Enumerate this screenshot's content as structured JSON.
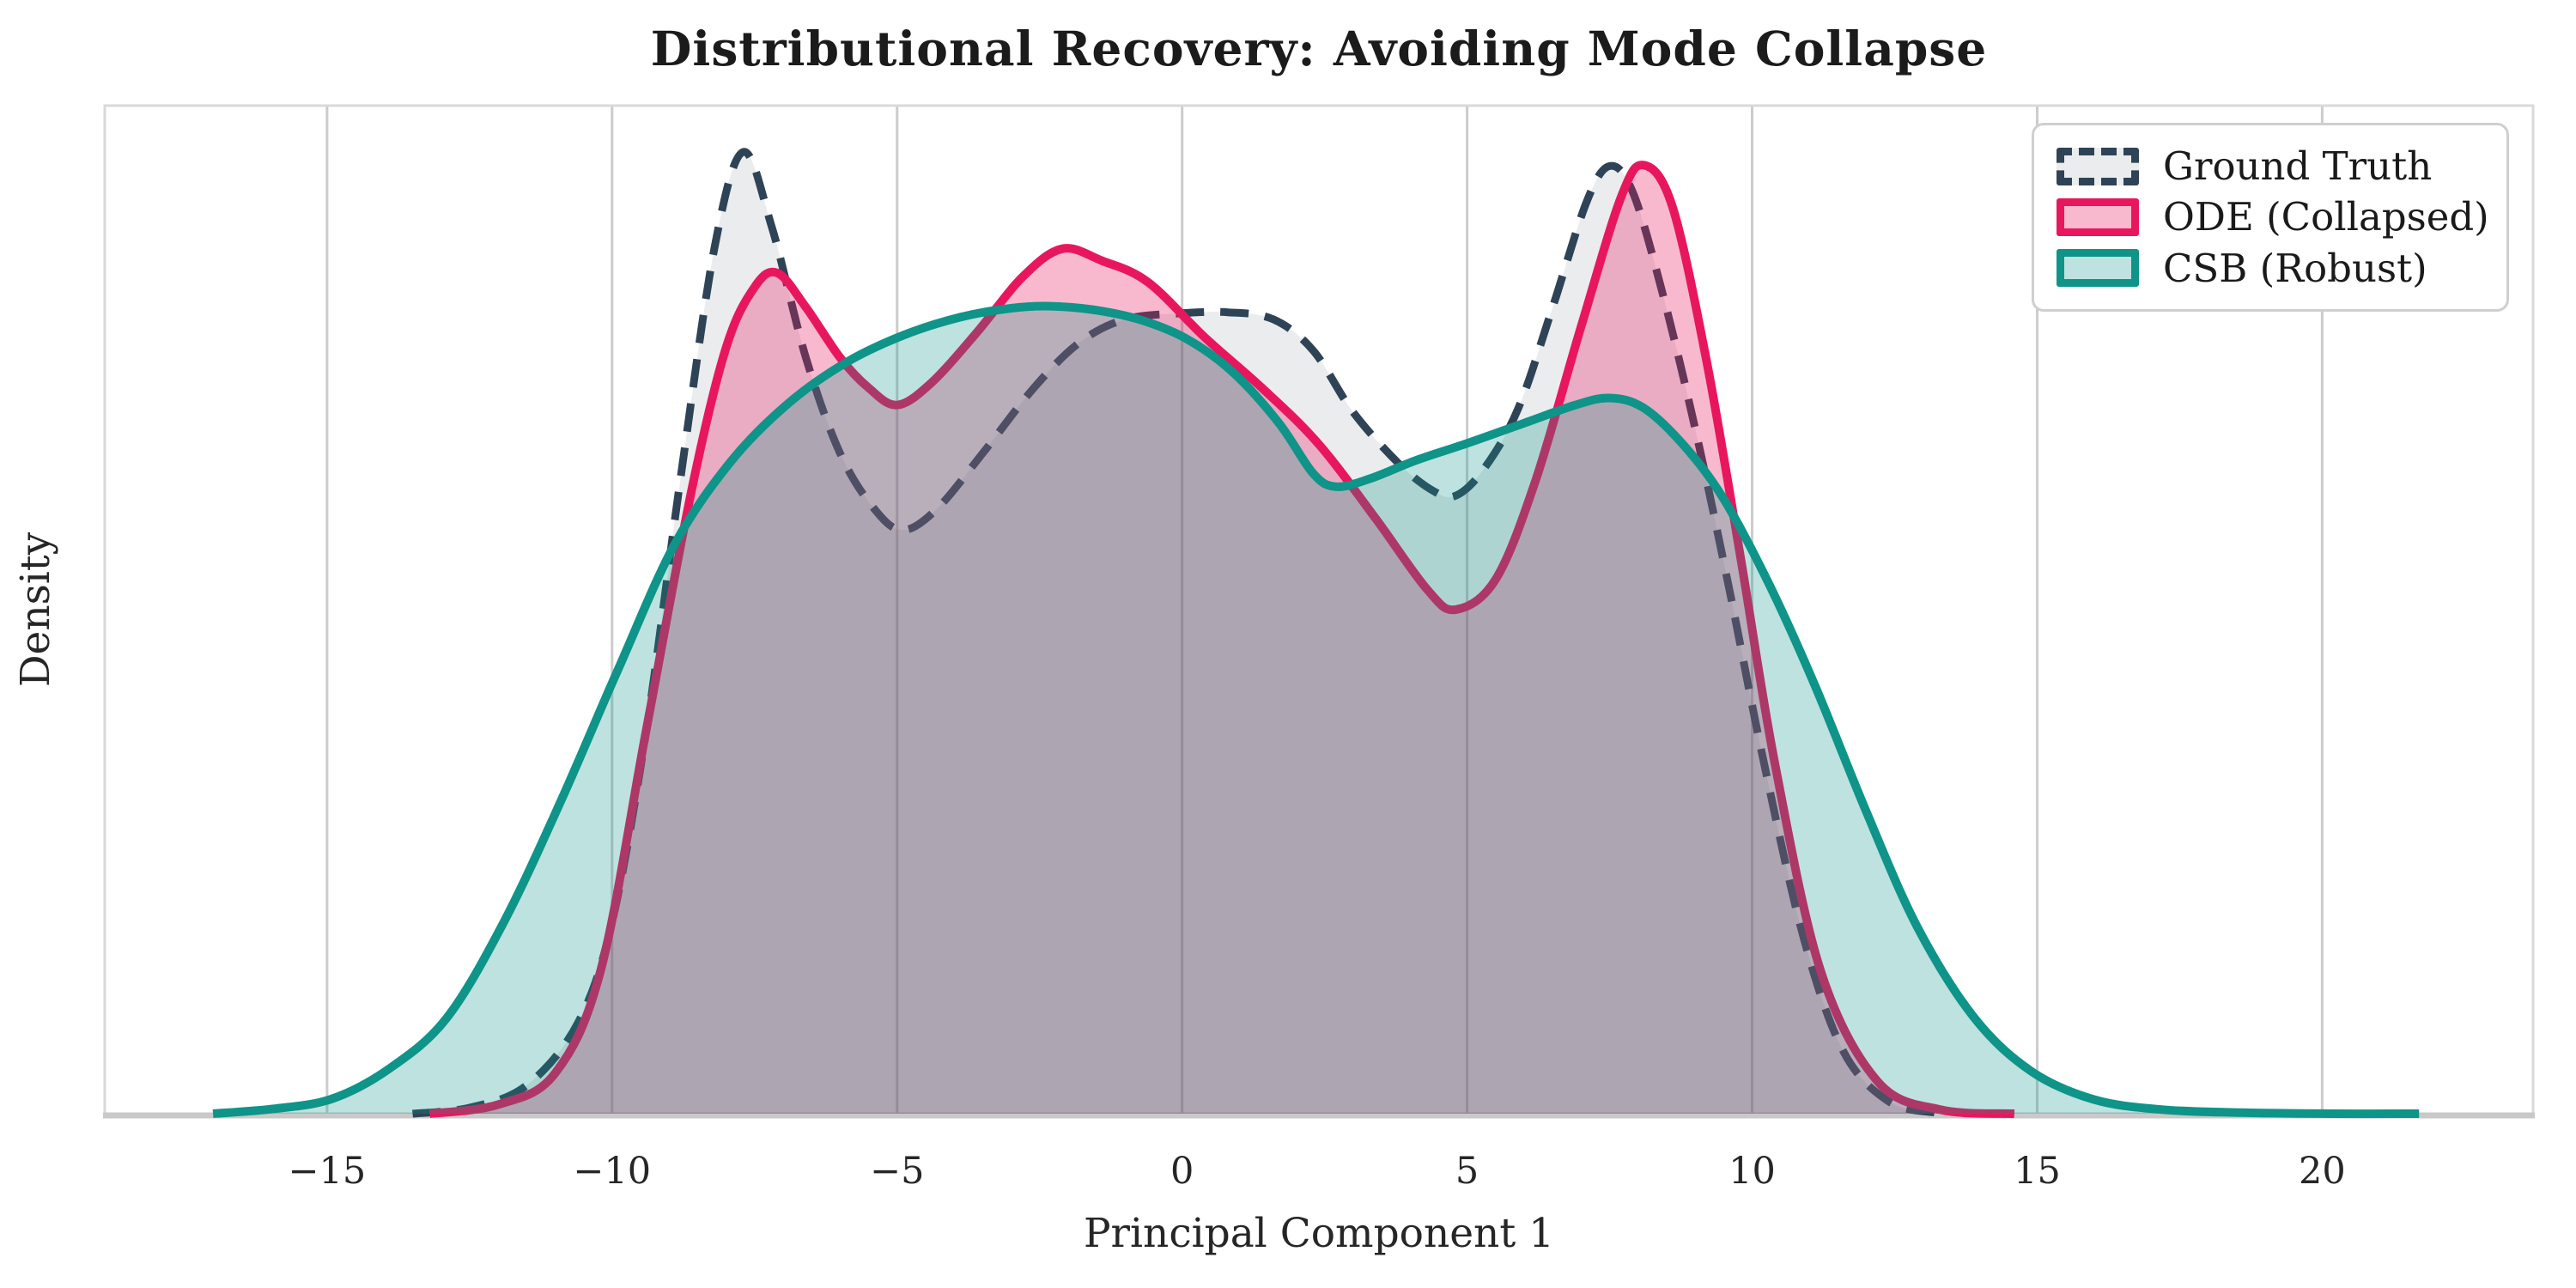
{
  "title": "Distributional Recovery: Avoiding Mode Collapse",
  "chart_data": {
    "type": "area",
    "title": "Distributional Recovery: Avoiding Mode Collapse",
    "xlabel": "Principal Component 1",
    "ylabel": "Density",
    "xlim": [
      -18.9,
      23.7
    ],
    "ylim": [
      0,
      1.0
    ],
    "grid": "vertical-only",
    "grid_color": "#cccccc",
    "frame_color": "#d9d9d9",
    "legend_position": "upper right",
    "x_tick_values": [
      -15,
      -10,
      -5,
      0,
      5,
      10,
      15,
      20
    ],
    "x_tick_labels": [
      "−15",
      "−10",
      "−5",
      "0",
      "5",
      "10",
      "15",
      "20"
    ],
    "y_tick_labels": [],
    "series": [
      {
        "name": "Ground Truth",
        "style": "dashed",
        "line_color": "#2E4356",
        "fill_color": "rgba(46,67,86,0.10)",
        "points": [
          [
            -13.5,
            0.0
          ],
          [
            -12.5,
            0.006
          ],
          [
            -11.5,
            0.028
          ],
          [
            -10.6,
            0.09
          ],
          [
            -10.0,
            0.19
          ],
          [
            -9.4,
            0.38
          ],
          [
            -8.8,
            0.63
          ],
          [
            -8.2,
            0.86
          ],
          [
            -7.7,
            0.954
          ],
          [
            -7.2,
            0.88
          ],
          [
            -6.6,
            0.75
          ],
          [
            -6.0,
            0.655
          ],
          [
            -5.4,
            0.6
          ],
          [
            -4.9,
            0.579
          ],
          [
            -4.3,
            0.6
          ],
          [
            -3.5,
            0.655
          ],
          [
            -2.6,
            0.72
          ],
          [
            -1.8,
            0.765
          ],
          [
            -1.0,
            0.788
          ],
          [
            0.0,
            0.794
          ],
          [
            0.8,
            0.795
          ],
          [
            1.6,
            0.788
          ],
          [
            2.3,
            0.757
          ],
          [
            3.0,
            0.696
          ],
          [
            3.8,
            0.645
          ],
          [
            4.4,
            0.618
          ],
          [
            4.8,
            0.613
          ],
          [
            5.3,
            0.64
          ],
          [
            5.9,
            0.7
          ],
          [
            6.5,
            0.8
          ],
          [
            7.1,
            0.905
          ],
          [
            7.5,
            0.94
          ],
          [
            7.9,
            0.915
          ],
          [
            8.4,
            0.82
          ],
          [
            9.0,
            0.68
          ],
          [
            9.6,
            0.52
          ],
          [
            10.2,
            0.35
          ],
          [
            10.9,
            0.175
          ],
          [
            11.6,
            0.062
          ],
          [
            12.4,
            0.012
          ],
          [
            13.2,
            0.001
          ]
        ]
      },
      {
        "name": "ODE (Collapsed)",
        "style": "solid",
        "line_color": "#E8175D",
        "fill_color": "rgba(232,23,93,0.30)",
        "points": [
          [
            -13.2,
            0.0
          ],
          [
            -12.0,
            0.009
          ],
          [
            -11.0,
            0.04
          ],
          [
            -10.2,
            0.142
          ],
          [
            -9.4,
            0.381
          ],
          [
            -8.6,
            0.62
          ],
          [
            -8.0,
            0.76
          ],
          [
            -7.5,
            0.82
          ],
          [
            -7.1,
            0.834
          ],
          [
            -6.6,
            0.8
          ],
          [
            -6.0,
            0.75
          ],
          [
            -5.5,
            0.72
          ],
          [
            -5.0,
            0.703
          ],
          [
            -4.4,
            0.725
          ],
          [
            -3.6,
            0.775
          ],
          [
            -2.8,
            0.83
          ],
          [
            -2.1,
            0.858
          ],
          [
            -1.4,
            0.846
          ],
          [
            -0.6,
            0.825
          ],
          [
            0.4,
            0.77
          ],
          [
            1.4,
            0.72
          ],
          [
            2.4,
            0.664
          ],
          [
            3.4,
            0.59
          ],
          [
            4.3,
            0.52
          ],
          [
            4.8,
            0.5
          ],
          [
            5.5,
            0.53
          ],
          [
            6.2,
            0.628
          ],
          [
            7.0,
            0.781
          ],
          [
            7.7,
            0.909
          ],
          [
            8.1,
            0.941
          ],
          [
            8.6,
            0.9
          ],
          [
            9.2,
            0.747
          ],
          [
            9.8,
            0.551
          ],
          [
            10.4,
            0.347
          ],
          [
            11.2,
            0.142
          ],
          [
            12.2,
            0.032
          ],
          [
            13.3,
            0.004
          ],
          [
            14.6,
            0.0
          ]
        ]
      },
      {
        "name": "CSB (Robust)",
        "style": "solid",
        "line_color": "#0E9488",
        "fill_color": "rgba(14,148,136,0.27)",
        "points": [
          [
            -17.0,
            0.0
          ],
          [
            -15.9,
            0.005
          ],
          [
            -14.9,
            0.015
          ],
          [
            -13.9,
            0.045
          ],
          [
            -12.9,
            0.095
          ],
          [
            -11.9,
            0.19
          ],
          [
            -10.9,
            0.31
          ],
          [
            -9.9,
            0.44
          ],
          [
            -8.9,
            0.565
          ],
          [
            -7.9,
            0.648
          ],
          [
            -6.9,
            0.705
          ],
          [
            -5.9,
            0.745
          ],
          [
            -4.9,
            0.772
          ],
          [
            -3.9,
            0.79
          ],
          [
            -3.0,
            0.799
          ],
          [
            -2.3,
            0.801
          ],
          [
            -1.5,
            0.797
          ],
          [
            -0.7,
            0.787
          ],
          [
            0.1,
            0.768
          ],
          [
            0.9,
            0.735
          ],
          [
            1.7,
            0.685
          ],
          [
            2.3,
            0.635
          ],
          [
            2.7,
            0.622
          ],
          [
            3.3,
            0.63
          ],
          [
            4.1,
            0.648
          ],
          [
            5.0,
            0.665
          ],
          [
            6.0,
            0.685
          ],
          [
            6.9,
            0.703
          ],
          [
            7.5,
            0.71
          ],
          [
            8.1,
            0.7
          ],
          [
            8.8,
            0.663
          ],
          [
            9.5,
            0.61
          ],
          [
            10.3,
            0.525
          ],
          [
            11.1,
            0.425
          ],
          [
            12.0,
            0.3
          ],
          [
            12.9,
            0.185
          ],
          [
            13.9,
            0.095
          ],
          [
            14.9,
            0.042
          ],
          [
            16.0,
            0.014
          ],
          [
            17.2,
            0.004
          ],
          [
            18.6,
            0.001
          ],
          [
            20.2,
            0.0
          ],
          [
            21.7,
            0.0
          ]
        ]
      }
    ]
  }
}
